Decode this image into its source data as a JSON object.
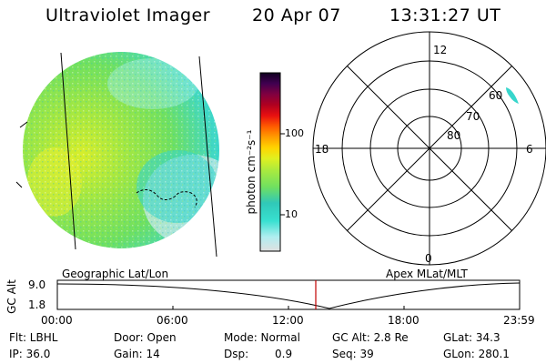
{
  "header": {
    "instrument": "Ultraviolet Imager",
    "date": "20 Apr 07",
    "time": "13:31:27 UT"
  },
  "panels": {
    "left_label": "Geographic Lat/Lon",
    "right_label": "Apex MLat/MLT"
  },
  "colorbar": {
    "unit_label": "photon cm⁻²s⁻¹",
    "tick_100": "100",
    "tick_10": "10",
    "scale": "log",
    "colors": [
      "#d9d9d9",
      "#40e0d0",
      "#2fd0c0",
      "#7ee85a",
      "#b6ee3a",
      "#e8f020",
      "#ffd000",
      "#ff9a00",
      "#ff5000",
      "#e01010",
      "#b00020",
      "#800040",
      "#4a0050",
      "#1a0030"
    ]
  },
  "polar": {
    "mlt_12": "12",
    "mlt_18": "18",
    "mlt_6": "6",
    "mlt_0": "0",
    "lat_60": "60",
    "lat_70": "70",
    "lat_80": "80"
  },
  "altitude_plot": {
    "ylabel": "GC Alt",
    "ytick_top": "9.0",
    "ytick_bottom": "1.8",
    "x_ticks": [
      "00:00",
      "06:00",
      "12:00",
      "18:00",
      "23:59"
    ],
    "marker_color": "#c00000"
  },
  "status": {
    "flt": "Flt: LBHL",
    "ip": "IP: 36.0",
    "door": "Door: Open",
    "gain": "Gain: 14",
    "mode": "Mode: Normal",
    "dsp_label": "Dsp:",
    "dsp_value": "0.9",
    "gc_alt": "GC Alt: 2.8 Re",
    "seq": "Seq: 39",
    "glat": "GLat: 34.3",
    "glon": "GLon: 280.1"
  }
}
